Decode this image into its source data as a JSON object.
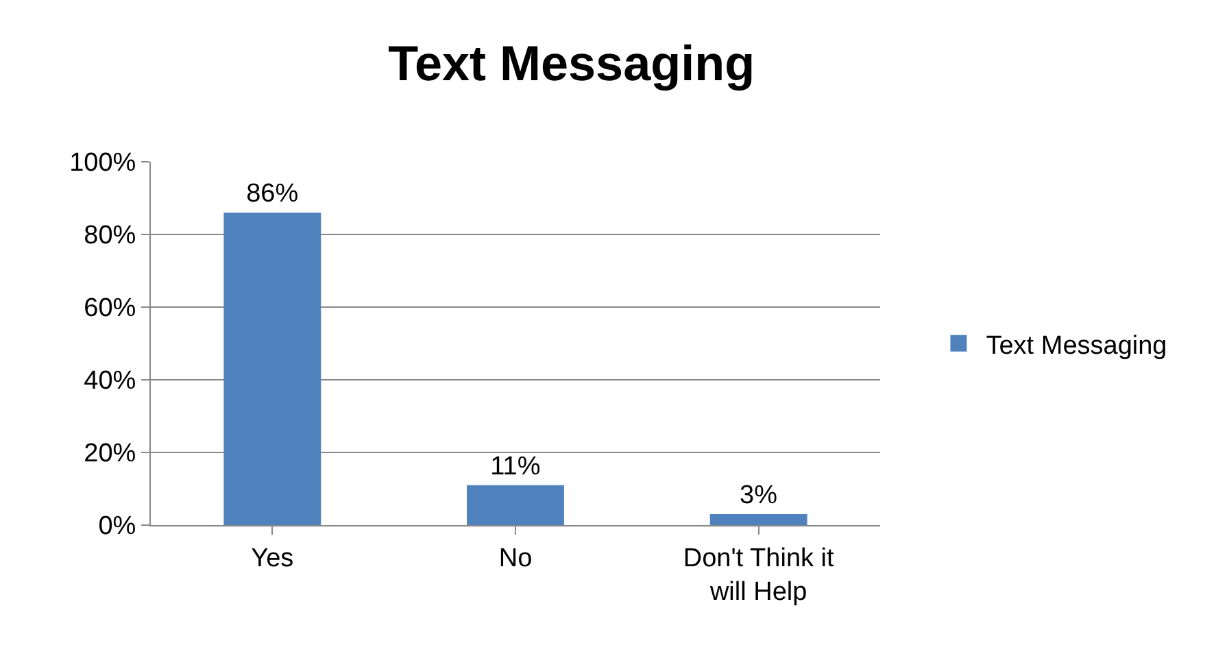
{
  "chart_data": {
    "type": "bar",
    "title": "Text Messaging",
    "categories": [
      "Yes",
      "No",
      "Don't Think it will Help"
    ],
    "series": [
      {
        "name": "Text Messaging",
        "color": "#4f81bd",
        "values": [
          86,
          11,
          3
        ],
        "value_labels": [
          "86%",
          "11%",
          "3%"
        ]
      }
    ],
    "ylim": [
      0,
      100
    ],
    "yticks": [
      {
        "value": 0,
        "label": "0%"
      },
      {
        "value": 20,
        "label": "20%"
      },
      {
        "value": 40,
        "label": "40%"
      },
      {
        "value": 60,
        "label": "60%"
      },
      {
        "value": 80,
        "label": "80%"
      },
      {
        "value": 100,
        "label": "100%"
      }
    ],
    "grid": "y",
    "legend": "right"
  }
}
